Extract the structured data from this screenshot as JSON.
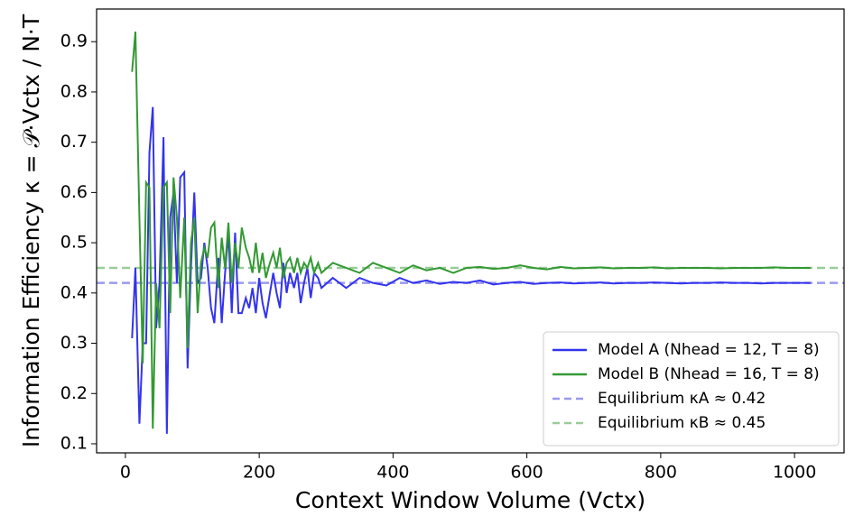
{
  "chart_data": {
    "type": "line",
    "x_label": "Context Window Volume (Vctx)",
    "y_label": "Information Efficiency κ = 𝒫·Vctx / N·T",
    "x": [
      10,
      15,
      21,
      26,
      31,
      36,
      41,
      46,
      51,
      57,
      62,
      67,
      72,
      77,
      82,
      88,
      93,
      98,
      103,
      108,
      113,
      118,
      123,
      128,
      133,
      139,
      144,
      149,
      154,
      159,
      164,
      169,
      174,
      180,
      185,
      190,
      195,
      200,
      205,
      210,
      216,
      221,
      226,
      231,
      236,
      241,
      246,
      252,
      257,
      262,
      267,
      272,
      277,
      282,
      288,
      293,
      310,
      330,
      350,
      370,
      390,
      410,
      430,
      450,
      470,
      490,
      510,
      530,
      550,
      570,
      590,
      610,
      630,
      650,
      670,
      690,
      710,
      730,
      750,
      770,
      790,
      810,
      830,
      850,
      870,
      890,
      910,
      930,
      950,
      970,
      990,
      1010,
      1024
    ],
    "series": [
      {
        "name": "Model A (Nhead = 12, T = 8)",
        "color": "#3333ee",
        "values": [
          0.31,
          0.45,
          0.14,
          0.3,
          0.3,
          0.68,
          0.77,
          0.33,
          0.42,
          0.71,
          0.12,
          0.55,
          0.6,
          0.42,
          0.63,
          0.64,
          0.25,
          0.45,
          0.6,
          0.42,
          0.43,
          0.5,
          0.45,
          0.37,
          0.34,
          0.47,
          0.34,
          0.44,
          0.52,
          0.36,
          0.52,
          0.36,
          0.36,
          0.39,
          0.37,
          0.41,
          0.36,
          0.43,
          0.38,
          0.35,
          0.4,
          0.44,
          0.4,
          0.37,
          0.46,
          0.4,
          0.44,
          0.41,
          0.44,
          0.38,
          0.42,
          0.45,
          0.39,
          0.44,
          0.43,
          0.41,
          0.43,
          0.41,
          0.43,
          0.42,
          0.415,
          0.43,
          0.42,
          0.425,
          0.418,
          0.422,
          0.42,
          0.425,
          0.417,
          0.42,
          0.422,
          0.418,
          0.42,
          0.421,
          0.419,
          0.42,
          0.421,
          0.419,
          0.42,
          0.42,
          0.421,
          0.42,
          0.419,
          0.42,
          0.42,
          0.421,
          0.42,
          0.42,
          0.419,
          0.42,
          0.42,
          0.42,
          0.42
        ]
      },
      {
        "name": "Model B (Nhead = 16, T = 8)",
        "color": "#339933",
        "values": [
          0.84,
          0.92,
          0.55,
          0.26,
          0.62,
          0.61,
          0.13,
          0.42,
          0.33,
          0.61,
          0.62,
          0.36,
          0.63,
          0.55,
          0.39,
          0.55,
          0.29,
          0.5,
          0.55,
          0.36,
          0.46,
          0.49,
          0.47,
          0.53,
          0.54,
          0.41,
          0.51,
          0.45,
          0.54,
          0.42,
          0.5,
          0.45,
          0.53,
          0.49,
          0.47,
          0.44,
          0.5,
          0.44,
          0.48,
          0.43,
          0.46,
          0.48,
          0.45,
          0.49,
          0.43,
          0.46,
          0.47,
          0.44,
          0.47,
          0.44,
          0.46,
          0.45,
          0.47,
          0.44,
          0.46,
          0.44,
          0.46,
          0.45,
          0.44,
          0.46,
          0.45,
          0.44,
          0.455,
          0.445,
          0.45,
          0.44,
          0.45,
          0.452,
          0.448,
          0.45,
          0.455,
          0.45,
          0.447,
          0.452,
          0.449,
          0.45,
          0.451,
          0.449,
          0.45,
          0.45,
          0.451,
          0.449,
          0.45,
          0.45,
          0.45,
          0.449,
          0.45,
          0.45,
          0.45,
          0.451,
          0.45,
          0.45,
          0.45
        ]
      }
    ],
    "hlines": [
      {
        "name": "Equilibrium κA ≈ 0.42",
        "value": 0.42,
        "color": "#9999ee"
      },
      {
        "name": "Equilibrium κB ≈ 0.45",
        "value": 0.45,
        "color": "#99cc99"
      }
    ],
    "xlim": [
      -43,
      1074
    ],
    "ylim": [
      0.082,
      0.965
    ],
    "xticks": [
      0,
      200,
      400,
      600,
      800,
      1000
    ],
    "yticks": [
      0.1,
      0.2,
      0.3,
      0.4,
      0.5,
      0.6,
      0.7,
      0.8,
      0.9
    ],
    "legend": "lower right"
  }
}
